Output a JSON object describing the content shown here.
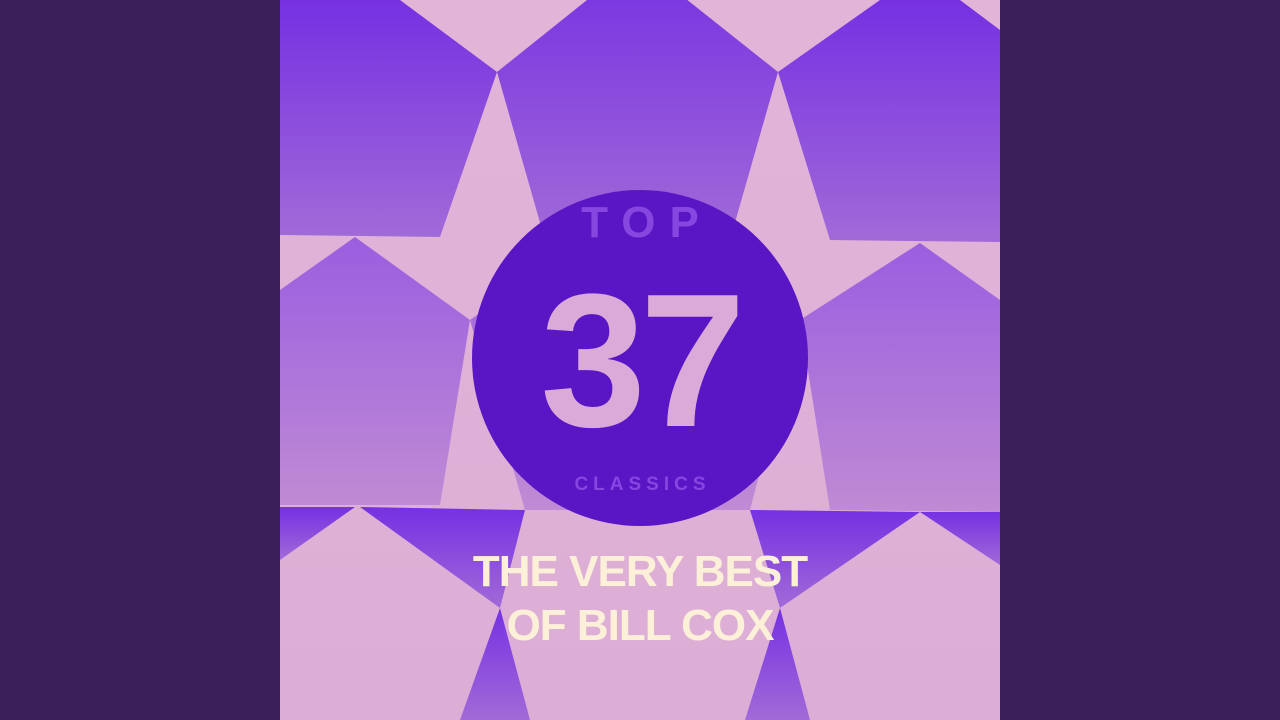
{
  "cover": {
    "top_label": "TOP",
    "number": "37",
    "classics_label": "CLASSICS",
    "title_line1": "THE VERY BEST",
    "title_line2": "OF BILL COX"
  },
  "colors": {
    "letterbox": "#3a1f5a",
    "circle": "#5a16c4",
    "pentagon_purple": "#7a34e4",
    "background_pink": "#dcaad8",
    "title_cream": "#fdf0d8"
  }
}
